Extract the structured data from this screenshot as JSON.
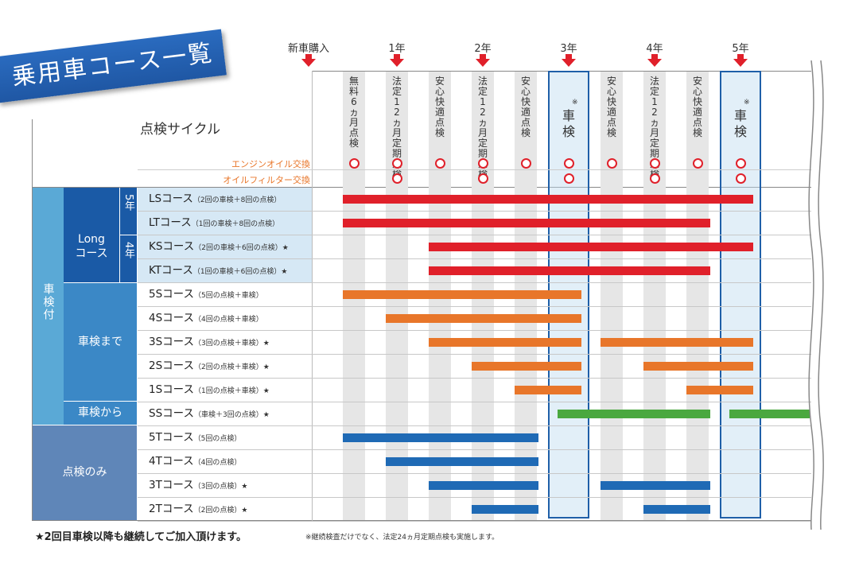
{
  "title": "乗用車コース一覧",
  "subtitle": "点検サイクル",
  "timeline": [
    "新車購入",
    "1年",
    "2年",
    "3年",
    "4年",
    "5年"
  ],
  "columns": [
    {
      "text": "無料6ヵ月点検",
      "oil": true,
      "filter": false
    },
    {
      "text": "法定12ヵ月定期点検",
      "oil": true,
      "filter": true
    },
    {
      "text": "安心快適点検",
      "oil": true,
      "filter": false
    },
    {
      "text": "法定12ヵ月定期点検",
      "oil": true,
      "filter": true
    },
    {
      "text": "安心快適点検",
      "oil": true,
      "filter": false
    },
    {
      "text": "車検",
      "mark": "※",
      "oil": true,
      "filter": true,
      "shaken": true
    },
    {
      "text": "安心快適点検",
      "oil": true,
      "filter": false
    },
    {
      "text": "法定12ヵ月定期点検",
      "oil": true,
      "filter": true
    },
    {
      "text": "安心快適点検",
      "oil": true,
      "filter": false
    },
    {
      "text": "車検",
      "mark": "※",
      "oil": true,
      "filter": true,
      "shaken": true
    }
  ],
  "oil_label": "エンジンオイル交換",
  "filter_label": "オイルフィルター交換",
  "categories": {
    "shakenzuki": "車検付",
    "long": "Long\nコース",
    "five_year": "5年",
    "four_year": "4年",
    "shakenmade": "車検まで",
    "shakenkara": "車検から",
    "tenkennomi": "点検のみ"
  },
  "courses": [
    {
      "name": "LSコース",
      "detail": "（2回の車検＋8回の点検）",
      "star": "",
      "color": "#e0202a",
      "segments": [
        [
          0,
          9
        ]
      ]
    },
    {
      "name": "LTコース",
      "detail": "（1回の車検＋8回の点検）",
      "star": "",
      "color": "#e0202a",
      "segments": [
        [
          0,
          8
        ]
      ]
    },
    {
      "name": "KSコース",
      "detail": "（2回の車検＋6回の点検）",
      "star": "★",
      "color": "#e0202a",
      "segments": [
        [
          2,
          9
        ]
      ]
    },
    {
      "name": "KTコース",
      "detail": "（1回の車検＋6回の点検）",
      "star": "★",
      "color": "#e0202a",
      "segments": [
        [
          2,
          8
        ]
      ]
    },
    {
      "name": "5Sコース",
      "detail": "（5回の点検＋車検）",
      "star": "",
      "color": "#e8762a",
      "segments": [
        [
          0,
          5
        ]
      ]
    },
    {
      "name": "4Sコース",
      "detail": "（4回の点検＋車検）",
      "star": "",
      "color": "#e8762a",
      "segments": [
        [
          1,
          5
        ]
      ]
    },
    {
      "name": "3Sコース",
      "detail": "（3回の点検＋車検）",
      "star": "★",
      "color": "#e8762a",
      "segments": [
        [
          2,
          5
        ],
        [
          6,
          9
        ]
      ]
    },
    {
      "name": "2Sコース",
      "detail": "（2回の点検＋車検）",
      "star": "★",
      "color": "#e8762a",
      "segments": [
        [
          3,
          5
        ],
        [
          7,
          9
        ]
      ]
    },
    {
      "name": "1Sコース",
      "detail": "（1回の点検＋車検）",
      "star": "★",
      "color": "#e8762a",
      "segments": [
        [
          4,
          5
        ],
        [
          8,
          9
        ]
      ]
    },
    {
      "name": "SSコース",
      "detail": "（車検＋3回の点検）",
      "star": "★",
      "color": "#4aa83f",
      "segments": [
        [
          5,
          8
        ],
        [
          9,
          10
        ]
      ]
    },
    {
      "name": "5Tコース",
      "detail": "（5回の点検）",
      "star": "",
      "color": "#1f6ab5",
      "segments": [
        [
          0,
          4
        ]
      ]
    },
    {
      "name": "4Tコース",
      "detail": "（4回の点検）",
      "star": "",
      "color": "#1f6ab5",
      "segments": [
        [
          1,
          4
        ]
      ]
    },
    {
      "name": "3Tコース",
      "detail": "（3回の点検）",
      "star": "★",
      "color": "#1f6ab5",
      "segments": [
        [
          2,
          4
        ],
        [
          6,
          8
        ]
      ]
    },
    {
      "name": "2Tコース",
      "detail": "（2回の点検）",
      "star": "★",
      "color": "#1f6ab5",
      "segments": [
        [
          3,
          4
        ],
        [
          7,
          8
        ]
      ]
    }
  ],
  "footnote_main": "★2回目車検以降も継続してご加入頂けます。",
  "footnote_sub": "※継続検査だけでなく、法定24ヵ月定期点検も実施します。",
  "colors": {
    "accent": "#1f57a4",
    "red": "#e0202a",
    "orange": "#e8762a",
    "green": "#4aa83f",
    "blue": "#1f6ab5",
    "oil_text": "#e8762a"
  }
}
